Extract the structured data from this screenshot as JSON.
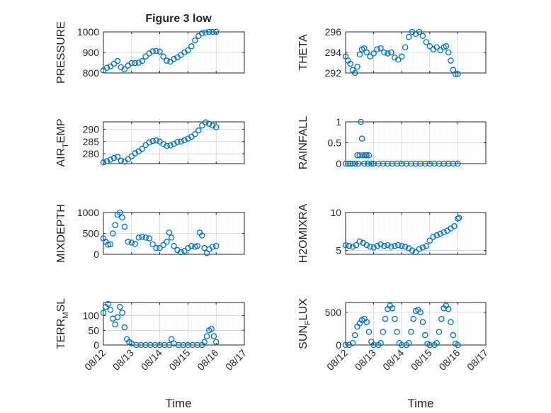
{
  "title": "Figure 3 low",
  "colors": {
    "marker": "#0072BD",
    "axis": "#262626",
    "grid": "#d0d0d0"
  },
  "date_ticks": [
    "08/12",
    "08/13",
    "08/14",
    "08/15",
    "08/16",
    "08/17"
  ],
  "xlabel": "Time",
  "chart_data": [
    {
      "type": "scatter",
      "id": "pressure",
      "ylabel": "PRESSURE",
      "ylabel_sub": "",
      "ylabel_tail": "",
      "ylim": [
        800,
        1000
      ],
      "yticks": [
        800,
        900,
        1000
      ],
      "show_xticks": false,
      "grid": true,
      "x": [
        "08/12 00:00",
        "08/12 03:00",
        "08/12 06:00",
        "08/12 09:00",
        "08/12 12:00",
        "08/12 15:00",
        "08/12 18:00",
        "08/12 21:00",
        "08/13 00:00",
        "08/13 03:00",
        "08/13 06:00",
        "08/13 09:00",
        "08/13 12:00",
        "08/13 15:00",
        "08/13 18:00",
        "08/13 21:00",
        "08/14 00:00",
        "08/14 03:00",
        "08/14 06:00",
        "08/14 09:00",
        "08/14 12:00",
        "08/14 15:00",
        "08/14 18:00",
        "08/14 21:00",
        "08/15 00:00",
        "08/15 03:00",
        "08/15 06:00",
        "08/15 09:00",
        "08/15 12:00",
        "08/15 15:00",
        "08/15 18:00",
        "08/15 21:00",
        "08/16 00:00"
      ],
      "y": [
        812,
        825,
        832,
        845,
        858,
        828,
        818,
        836,
        848,
        848,
        850,
        858,
        880,
        895,
        905,
        907,
        904,
        880,
        860,
        855,
        868,
        876,
        888,
        900,
        910,
        930,
        958,
        980,
        993,
        997,
        1000,
        1000,
        1000
      ]
    },
    {
      "type": "scatter",
      "id": "theta",
      "ylabel": "THETA",
      "ylabel_sub": "",
      "ylabel_tail": "",
      "ylim": [
        292,
        296
      ],
      "yticks": [
        292,
        294,
        296
      ],
      "show_xticks": false,
      "grid": true,
      "x": [
        "08/12 00:00",
        "08/12 02:00",
        "08/12 04:00",
        "08/12 06:00",
        "08/12 08:00",
        "08/12 10:00",
        "08/12 12:00",
        "08/12 14:00",
        "08/12 16:00",
        "08/12 18:00",
        "08/12 21:00",
        "08/13 00:00",
        "08/13 03:00",
        "08/13 06:00",
        "08/13 09:00",
        "08/13 12:00",
        "08/13 15:00",
        "08/13 18:00",
        "08/13 21:00",
        "08/14 00:00",
        "08/14 03:00",
        "08/14 06:00",
        "08/14 09:00",
        "08/14 12:00",
        "08/14 15:00",
        "08/14 18:00",
        "08/14 21:00",
        "08/15 00:00",
        "08/15 03:00",
        "08/15 06:00",
        "08/15 09:00",
        "08/15 12:00",
        "08/15 14:00",
        "08/15 16:00",
        "08/15 18:00",
        "08/15 20:00",
        "08/15 22:00",
        "08/16 00:00"
      ],
      "y": [
        293.6,
        293.2,
        292.9,
        292.3,
        292.0,
        292.6,
        293.8,
        294.3,
        294.4,
        294.0,
        293.6,
        293.9,
        294.3,
        294.4,
        294.0,
        293.9,
        294.0,
        293.5,
        293.3,
        293.6,
        294.5,
        295.5,
        296.0,
        295.8,
        296.0,
        295.6,
        295.0,
        294.6,
        294.3,
        294.5,
        294.2,
        294.5,
        294.6,
        294.0,
        293.2,
        292.3,
        291.9,
        291.9
      ]
    },
    {
      "type": "scatter",
      "id": "air_temp",
      "ylabel": "AIR",
      "ylabel_sub": "T",
      "ylabel_tail": "EMP",
      "ylim": [
        276,
        293
      ],
      "yticks": [
        280,
        285,
        290
      ],
      "show_xticks": false,
      "grid": true,
      "x": [
        "08/12 00:00",
        "08/12 03:00",
        "08/12 06:00",
        "08/12 09:00",
        "08/12 12:00",
        "08/12 15:00",
        "08/12 18:00",
        "08/12 21:00",
        "08/13 00:00",
        "08/13 03:00",
        "08/13 06:00",
        "08/13 09:00",
        "08/13 12:00",
        "08/13 15:00",
        "08/13 18:00",
        "08/13 21:00",
        "08/14 00:00",
        "08/14 03:00",
        "08/14 06:00",
        "08/14 09:00",
        "08/14 12:00",
        "08/14 15:00",
        "08/14 18:00",
        "08/14 21:00",
        "08/15 00:00",
        "08/15 03:00",
        "08/15 06:00",
        "08/15 09:00",
        "08/15 12:00",
        "08/15 15:00",
        "08/15 18:00",
        "08/15 21:00",
        "08/16 00:00"
      ],
      "y": [
        276.5,
        277.0,
        277.6,
        278.3,
        278.8,
        277.2,
        276.8,
        277.8,
        279.0,
        280.2,
        281.0,
        282.0,
        283.5,
        284.6,
        285.2,
        285.4,
        285.0,
        284.0,
        283.2,
        283.4,
        284.0,
        284.8,
        285.0,
        285.5,
        286.2,
        287.0,
        288.0,
        289.5,
        291.5,
        292.8,
        292.2,
        291.5,
        290.8
      ]
    },
    {
      "type": "scatter",
      "id": "rainfall",
      "ylabel": "RAINFALL",
      "ylabel_sub": "",
      "ylabel_tail": "",
      "ylim": [
        0,
        1
      ],
      "yticks": [
        0,
        0.5,
        1
      ],
      "show_xticks": false,
      "grid": true,
      "x": [
        "08/12 00:00",
        "08/12 02:00",
        "08/12 04:00",
        "08/12 06:00",
        "08/12 08:00",
        "08/12 10:00",
        "08/12 11:00",
        "08/12 12:00",
        "08/12 13:00",
        "08/12 14:00",
        "08/12 15:00",
        "08/12 16:00",
        "08/12 17:00",
        "08/12 18:00",
        "08/12 19:00",
        "08/12 20:00",
        "08/12 22:00",
        "08/13 00:00",
        "08/13 04:00",
        "08/13 08:00",
        "08/13 12:00",
        "08/13 16:00",
        "08/13 20:00",
        "08/14 00:00",
        "08/14 04:00",
        "08/14 08:00",
        "08/14 12:00",
        "08/14 16:00",
        "08/14 20:00",
        "08/15 00:00",
        "08/15 04:00",
        "08/15 08:00",
        "08/15 12:00",
        "08/15 16:00",
        "08/15 20:00",
        "08/16 00:00"
      ],
      "y": [
        0,
        0,
        0,
        0,
        0,
        0.2,
        0,
        0.2,
        1.0,
        0.6,
        0.2,
        0,
        0.2,
        0.2,
        0,
        0.2,
        0,
        0,
        0,
        0,
        0,
        0,
        0,
        0,
        0,
        0,
        0,
        0,
        0,
        0,
        0,
        0,
        0,
        0,
        0,
        0
      ]
    },
    {
      "type": "scatter",
      "id": "mixdepth",
      "ylabel": "MIXDEPTH",
      "ylabel_sub": "",
      "ylabel_tail": "",
      "ylim": [
        0,
        1000
      ],
      "yticks": [
        0,
        500,
        1000
      ],
      "show_xticks": false,
      "grid": true,
      "x": [
        "08/12 00:00",
        "08/12 02:00",
        "08/12 04:00",
        "08/12 06:00",
        "08/12 08:00",
        "08/12 10:00",
        "08/12 12:00",
        "08/12 14:00",
        "08/12 16:00",
        "08/12 18:00",
        "08/12 21:00",
        "08/13 00:00",
        "08/13 03:00",
        "08/13 06:00",
        "08/13 09:00",
        "08/13 12:00",
        "08/13 15:00",
        "08/13 18:00",
        "08/13 21:00",
        "08/14 00:00",
        "08/14 03:00",
        "08/14 06:00",
        "08/14 08:00",
        "08/14 10:00",
        "08/14 12:00",
        "08/14 15:00",
        "08/14 18:00",
        "08/14 21:00",
        "08/15 00:00",
        "08/15 03:00",
        "08/15 06:00",
        "08/15 08:00",
        "08/15 10:00",
        "08/15 12:00",
        "08/15 14:00",
        "08/15 16:00",
        "08/15 18:00",
        "08/15 21:00",
        "08/16 00:00"
      ],
      "y": [
        380,
        300,
        230,
        240,
        500,
        700,
        950,
        1000,
        880,
        660,
        300,
        280,
        250,
        400,
        420,
        400,
        380,
        240,
        150,
        150,
        220,
        300,
        520,
        400,
        200,
        100,
        50,
        80,
        150,
        200,
        180,
        200,
        520,
        450,
        150,
        30,
        120,
        180,
        200
      ]
    },
    {
      "type": "scatter",
      "id": "h2omixra",
      "ylabel": "H2OMIXRA",
      "ylabel_sub": "",
      "ylabel_tail": "",
      "ylim": [
        4.5,
        10
      ],
      "yticks": [
        5,
        10
      ],
      "show_xticks": false,
      "grid": true,
      "x": [
        "08/12 00:00",
        "08/12 03:00",
        "08/12 06:00",
        "08/12 09:00",
        "08/12 12:00",
        "08/12 15:00",
        "08/12 18:00",
        "08/12 21:00",
        "08/13 00:00",
        "08/13 03:00",
        "08/13 06:00",
        "08/13 09:00",
        "08/13 12:00",
        "08/13 15:00",
        "08/13 18:00",
        "08/13 21:00",
        "08/14 00:00",
        "08/14 03:00",
        "08/14 06:00",
        "08/14 09:00",
        "08/14 12:00",
        "08/14 15:00",
        "08/14 18:00",
        "08/14 21:00",
        "08/15 00:00",
        "08/15 03:00",
        "08/15 06:00",
        "08/15 09:00",
        "08/15 12:00",
        "08/15 15:00",
        "08/15 18:00",
        "08/15 21:00",
        "08/16 00:00",
        "08/16 01:00"
      ],
      "y": [
        5.7,
        5.6,
        5.5,
        5.7,
        6.2,
        6.0,
        5.7,
        5.5,
        5.4,
        5.6,
        5.8,
        5.6,
        5.7,
        5.5,
        5.6,
        5.7,
        5.6,
        5.5,
        5.3,
        5.0,
        4.8,
        5.2,
        5.4,
        5.6,
        6.3,
        6.8,
        7.0,
        7.2,
        7.4,
        7.6,
        7.9,
        8.2,
        9.2,
        9.3
      ]
    },
    {
      "type": "scatter",
      "id": "terr_msl",
      "ylabel": "TERR",
      "ylabel_sub": "M",
      "ylabel_tail": "SL",
      "ylim": [
        0,
        145
      ],
      "yticks": [
        0,
        50,
        100
      ],
      "show_xticks": true,
      "grid": true,
      "x": [
        "08/12 00:00",
        "08/12 02:00",
        "08/12 04:00",
        "08/12 06:00",
        "08/12 08:00",
        "08/12 10:00",
        "08/12 12:00",
        "08/12 14:00",
        "08/12 16:00",
        "08/12 18:00",
        "08/12 20:00",
        "08/12 22:00",
        "08/13 00:00",
        "08/13 04:00",
        "08/13 08:00",
        "08/13 12:00",
        "08/13 16:00",
        "08/13 20:00",
        "08/14 00:00",
        "08/14 04:00",
        "08/14 08:00",
        "08/14 10:00",
        "08/14 12:00",
        "08/14 16:00",
        "08/14 20:00",
        "08/15 00:00",
        "08/15 04:00",
        "08/15 08:00",
        "08/15 12:00",
        "08/15 14:00",
        "08/15 16:00",
        "08/15 18:00",
        "08/15 20:00",
        "08/15 22:00",
        "08/16 00:00"
      ],
      "y": [
        110,
        130,
        140,
        120,
        90,
        70,
        95,
        130,
        110,
        60,
        20,
        10,
        5,
        0,
        0,
        0,
        0,
        0,
        0,
        0,
        0,
        20,
        5,
        0,
        0,
        0,
        0,
        0,
        0,
        10,
        30,
        50,
        55,
        30,
        10
      ]
    },
    {
      "type": "scatter",
      "id": "sun_flux",
      "ylabel": "SUN",
      "ylabel_sub": "F",
      "ylabel_tail": "LUX",
      "ylim": [
        0,
        650
      ],
      "yticks": [
        0,
        500
      ],
      "show_xticks": true,
      "grid": true,
      "x": [
        "08/12 00:00",
        "08/12 03:00",
        "08/12 06:00",
        "08/12 08:00",
        "08/12 10:00",
        "08/12 12:00",
        "08/12 14:00",
        "08/12 16:00",
        "08/12 18:00",
        "08/12 20:00",
        "08/12 22:00",
        "08/13 00:00",
        "08/13 04:00",
        "08/13 06:00",
        "08/13 08:00",
        "08/13 10:00",
        "08/13 12:00",
        "08/13 14:00",
        "08/13 16:00",
        "08/13 18:00",
        "08/13 20:00",
        "08/13 22:00",
        "08/14 00:00",
        "08/14 04:00",
        "08/14 06:00",
        "08/14 08:00",
        "08/14 10:00",
        "08/14 12:00",
        "08/14 14:00",
        "08/14 16:00",
        "08/14 18:00",
        "08/14 20:00",
        "08/14 22:00",
        "08/15 00:00",
        "08/15 04:00",
        "08/15 06:00",
        "08/15 08:00",
        "08/15 10:00",
        "08/15 12:00",
        "08/15 14:00",
        "08/15 16:00",
        "08/15 18:00",
        "08/15 20:00",
        "08/15 22:00",
        "08/16 00:00"
      ],
      "y": [
        0,
        0,
        30,
        150,
        280,
        330,
        380,
        400,
        350,
        200,
        50,
        0,
        0,
        30,
        200,
        400,
        550,
        600,
        560,
        400,
        200,
        30,
        0,
        0,
        30,
        200,
        400,
        520,
        540,
        500,
        350,
        150,
        20,
        0,
        0,
        30,
        200,
        400,
        560,
        600,
        550,
        350,
        150,
        20,
        0
      ]
    }
  ]
}
